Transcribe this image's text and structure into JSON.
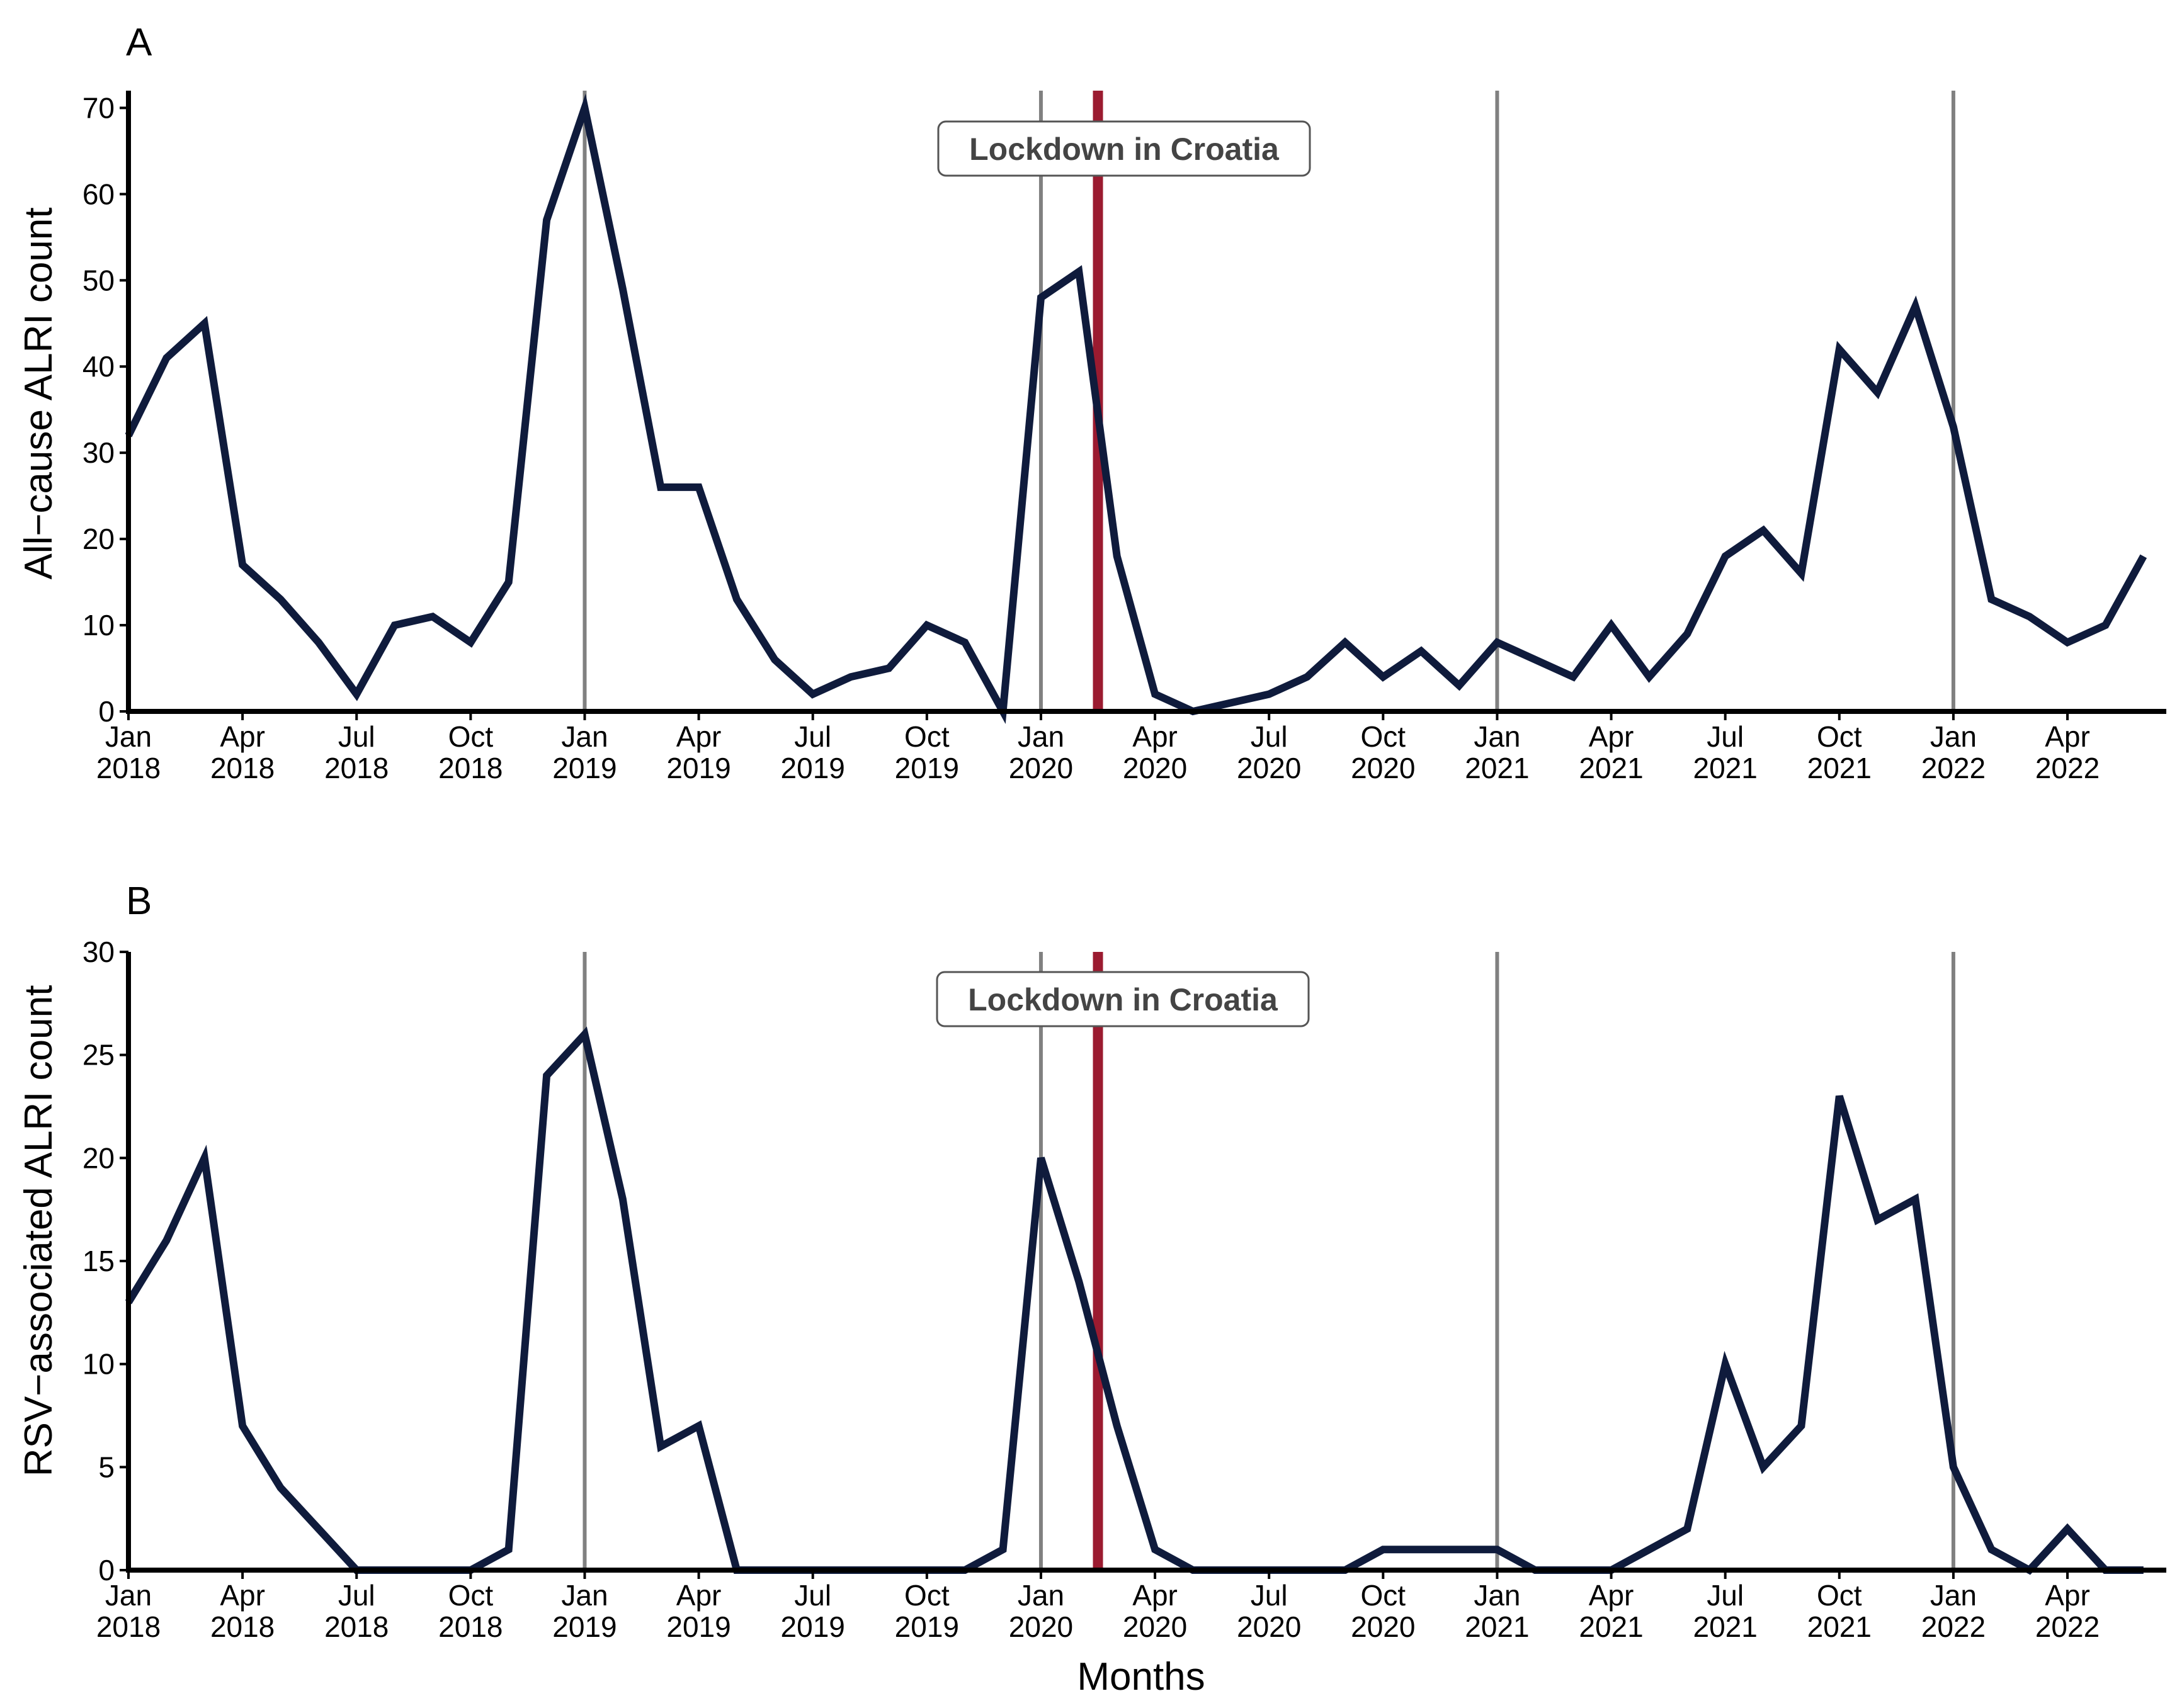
{
  "figure": {
    "x_title": "Months",
    "lockdown_color": "#9b1b30",
    "year_line_color": "#808080",
    "series_color": "#0f1b3c"
  },
  "chart_data": [
    {
      "type": "line",
      "panel": "A",
      "ylabel": "All−cause ALRI count",
      "xlabel": "",
      "ylim": [
        0,
        72
      ],
      "yticks": [
        0,
        10,
        20,
        30,
        40,
        50,
        60,
        70
      ],
      "x_range_months": [
        0,
        53.6
      ],
      "x_ticks": [
        {
          "m": 0,
          "month": "Jan",
          "year": "2018"
        },
        {
          "m": 3,
          "month": "Apr",
          "year": "2018"
        },
        {
          "m": 6,
          "month": "Jul",
          "year": "2018"
        },
        {
          "m": 9,
          "month": "Oct",
          "year": "2018"
        },
        {
          "m": 12,
          "month": "Jan",
          "year": "2019"
        },
        {
          "m": 15,
          "month": "Apr",
          "year": "2019"
        },
        {
          "m": 18,
          "month": "Jul",
          "year": "2019"
        },
        {
          "m": 21,
          "month": "Oct",
          "year": "2019"
        },
        {
          "m": 24,
          "month": "Jan",
          "year": "2020"
        },
        {
          "m": 27,
          "month": "Apr",
          "year": "2020"
        },
        {
          "m": 30,
          "month": "Jul",
          "year": "2020"
        },
        {
          "m": 33,
          "month": "Oct",
          "year": "2020"
        },
        {
          "m": 36,
          "month": "Jan",
          "year": "2021"
        },
        {
          "m": 39,
          "month": "Apr",
          "year": "2021"
        },
        {
          "m": 42,
          "month": "Jul",
          "year": "2021"
        },
        {
          "m": 45,
          "month": "Oct",
          "year": "2021"
        },
        {
          "m": 48,
          "month": "Jan",
          "year": "2022"
        },
        {
          "m": 51,
          "month": "Apr",
          "year": "2022"
        }
      ],
      "year_lines_months": [
        12,
        24,
        36,
        48
      ],
      "lockdown_month": 25.5,
      "lockdown_label": "Lockdown in Croatia",
      "series": [
        {
          "name": "All-cause ALRI",
          "x_months": [
            0,
            1,
            2,
            3,
            4,
            5,
            6,
            7,
            8,
            9,
            10,
            11,
            12,
            13,
            14,
            15,
            16,
            17,
            18,
            19,
            20,
            21,
            22,
            23,
            24,
            25,
            26,
            27,
            28,
            29,
            30,
            31,
            32,
            33,
            34,
            35,
            36,
            37,
            38,
            39,
            40,
            41,
            42,
            43,
            44,
            45,
            46,
            47,
            48,
            49,
            50,
            51,
            52,
            53
          ],
          "values": [
            32,
            41,
            45,
            17,
            13,
            8,
            2,
            10,
            11,
            8,
            15,
            57,
            70,
            49,
            26,
            26,
            13,
            6,
            2,
            4,
            5,
            10,
            8,
            0,
            48,
            51,
            18,
            2,
            0,
            1,
            2,
            4,
            8,
            4,
            7,
            3,
            8,
            6,
            4,
            10,
            4,
            9,
            18,
            21,
            16,
            42,
            37,
            47,
            33,
            13,
            11,
            8,
            10,
            18
          ]
        }
      ]
    },
    {
      "type": "line",
      "panel": "B",
      "ylabel": "RSV−associated ALRI count",
      "xlabel": "Months",
      "ylim": [
        0,
        30
      ],
      "yticks": [
        0,
        5,
        10,
        15,
        20,
        25,
        30
      ],
      "x_range_months": [
        0,
        53.6
      ],
      "x_ticks": [
        {
          "m": 0,
          "month": "Jan",
          "year": "2018"
        },
        {
          "m": 3,
          "month": "Apr",
          "year": "2018"
        },
        {
          "m": 6,
          "month": "Jul",
          "year": "2018"
        },
        {
          "m": 9,
          "month": "Oct",
          "year": "2018"
        },
        {
          "m": 12,
          "month": "Jan",
          "year": "2019"
        },
        {
          "m": 15,
          "month": "Apr",
          "year": "2019"
        },
        {
          "m": 18,
          "month": "Jul",
          "year": "2019"
        },
        {
          "m": 21,
          "month": "Oct",
          "year": "2019"
        },
        {
          "m": 24,
          "month": "Jan",
          "year": "2020"
        },
        {
          "m": 27,
          "month": "Apr",
          "year": "2020"
        },
        {
          "m": 30,
          "month": "Jul",
          "year": "2020"
        },
        {
          "m": 33,
          "month": "Oct",
          "year": "2020"
        },
        {
          "m": 36,
          "month": "Jan",
          "year": "2021"
        },
        {
          "m": 39,
          "month": "Apr",
          "year": "2021"
        },
        {
          "m": 42,
          "month": "Jul",
          "year": "2021"
        },
        {
          "m": 45,
          "month": "Oct",
          "year": "2021"
        },
        {
          "m": 48,
          "month": "Jan",
          "year": "2022"
        },
        {
          "m": 51,
          "month": "Apr",
          "year": "2022"
        }
      ],
      "year_lines_months": [
        12,
        24,
        36,
        48
      ],
      "lockdown_month": 25.5,
      "lockdown_label": "Lockdown in Croatia",
      "series": [
        {
          "name": "RSV-associated ALRI",
          "x_months": [
            0,
            1,
            2,
            3,
            4,
            5,
            6,
            7,
            8,
            9,
            10,
            11,
            12,
            13,
            14,
            15,
            16,
            17,
            18,
            19,
            20,
            21,
            22,
            23,
            24,
            25,
            26,
            27,
            28,
            29,
            30,
            31,
            32,
            33,
            34,
            35,
            36,
            37,
            38,
            39,
            40,
            41,
            42,
            43,
            44,
            45,
            46,
            47,
            48,
            49,
            50,
            51,
            52,
            53
          ],
          "values": [
            13,
            16,
            20,
            7,
            4,
            2,
            0,
            0,
            0,
            0,
            1,
            24,
            26,
            18,
            6,
            7,
            0,
            0,
            0,
            0,
            0,
            0,
            0,
            1,
            20,
            14,
            7,
            1,
            0,
            0,
            0,
            0,
            0,
            1,
            1,
            1,
            1,
            0,
            0,
            0,
            1,
            2,
            10,
            5,
            7,
            23,
            17,
            18,
            5,
            1,
            0,
            2,
            0,
            0
          ]
        }
      ]
    }
  ]
}
